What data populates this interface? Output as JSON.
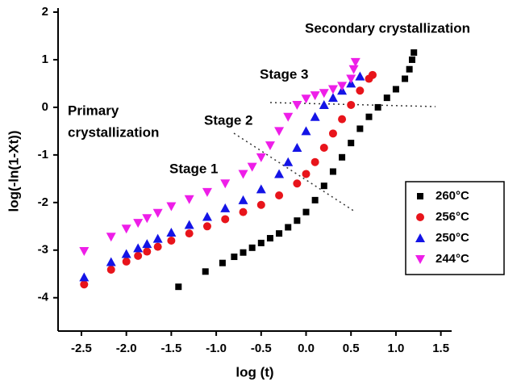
{
  "chart_data": {
    "type": "scatter",
    "x_label": "log (t)",
    "y_label": "log(-ln(1-Xt))",
    "annotations": [
      "Secondary crystallization",
      "Stage 3",
      "Stage 2",
      "Primary",
      "crystallization",
      "Stage 1"
    ],
    "xlim": [
      -2.76,
      1.62
    ],
    "ylim": [
      -4.7,
      2
    ],
    "xticks": [
      -2.5,
      {
        "value": -2,
        "label": "-2.0"
      },
      -1.5,
      {
        "value": -1,
        "label": "-1.0"
      },
      -0.5,
      {
        "value": 0,
        "label": "0.0"
      },
      0.5,
      {
        "value": 1,
        "label": "1.0"
      },
      1.5
    ],
    "yticks": [
      2,
      1,
      0,
      -1,
      -2,
      -3,
      -4
    ],
    "legend": "right",
    "series": [
      {
        "name": "260°C",
        "color": "#000000",
        "marker": "square",
        "x": [
          -1.42,
          -1.12,
          -0.93,
          -0.8,
          -0.7,
          -0.6,
          -0.5,
          -0.4,
          -0.3,
          -0.2,
          -0.1,
          0.0,
          0.1,
          0.2,
          0.3,
          0.4,
          0.5,
          0.6,
          0.7,
          0.8,
          0.9,
          1.0,
          1.1,
          1.15,
          1.18,
          1.2
        ],
        "values": [
          -3.77,
          -3.45,
          -3.27,
          -3.14,
          -3.05,
          -2.95,
          -2.85,
          -2.75,
          -2.65,
          -2.52,
          -2.38,
          -2.2,
          -1.95,
          -1.65,
          -1.35,
          -1.05,
          -0.75,
          -0.45,
          -0.2,
          0.0,
          0.2,
          0.38,
          0.6,
          0.8,
          1.0,
          1.15
        ]
      },
      {
        "name": "256°C",
        "color": "#e8141b",
        "marker": "circle",
        "x": [
          -2.47,
          -2.17,
          -2.0,
          -1.87,
          -1.77,
          -1.65,
          -1.5,
          -1.3,
          -1.1,
          -0.9,
          -0.7,
          -0.5,
          -0.3,
          -0.1,
          0.0,
          0.1,
          0.2,
          0.3,
          0.4,
          0.5,
          0.6,
          0.7,
          0.74
        ],
        "values": [
          -3.72,
          -3.41,
          -3.24,
          -3.12,
          -3.03,
          -2.93,
          -2.8,
          -2.65,
          -2.5,
          -2.35,
          -2.2,
          -2.05,
          -1.85,
          -1.6,
          -1.4,
          -1.15,
          -0.85,
          -0.55,
          -0.25,
          0.05,
          0.35,
          0.6,
          0.68
        ]
      },
      {
        "name": "250°C",
        "color": "#1414e6",
        "marker": "triangle-up",
        "x": [
          -2.47,
          -2.17,
          -2.0,
          -1.87,
          -1.77,
          -1.65,
          -1.5,
          -1.3,
          -1.1,
          -0.9,
          -0.7,
          -0.5,
          -0.3,
          -0.2,
          -0.1,
          0.0,
          0.1,
          0.2,
          0.3,
          0.4,
          0.5,
          0.6
        ],
        "values": [
          -3.57,
          -3.25,
          -3.08,
          -2.96,
          -2.87,
          -2.76,
          -2.63,
          -2.47,
          -2.3,
          -2.12,
          -1.95,
          -1.72,
          -1.4,
          -1.15,
          -0.85,
          -0.5,
          -0.2,
          0.05,
          0.2,
          0.35,
          0.5,
          0.65
        ]
      },
      {
        "name": "244°C",
        "color": "#ee1ee8",
        "marker": "triangle-down",
        "x": [
          -2.47,
          -2.17,
          -2.0,
          -1.87,
          -1.77,
          -1.65,
          -1.5,
          -1.3,
          -1.1,
          -0.9,
          -0.7,
          -0.6,
          -0.5,
          -0.4,
          -0.3,
          -0.2,
          -0.1,
          0.0,
          0.1,
          0.2,
          0.3,
          0.4,
          0.5,
          0.53,
          0.55
        ],
        "values": [
          -3.02,
          -2.72,
          -2.55,
          -2.43,
          -2.33,
          -2.22,
          -2.08,
          -1.93,
          -1.78,
          -1.6,
          -1.4,
          -1.25,
          -1.05,
          -0.8,
          -0.5,
          -0.2,
          0.05,
          0.18,
          0.25,
          0.3,
          0.38,
          0.45,
          0.6,
          0.8,
          0.95
        ]
      }
    ]
  }
}
